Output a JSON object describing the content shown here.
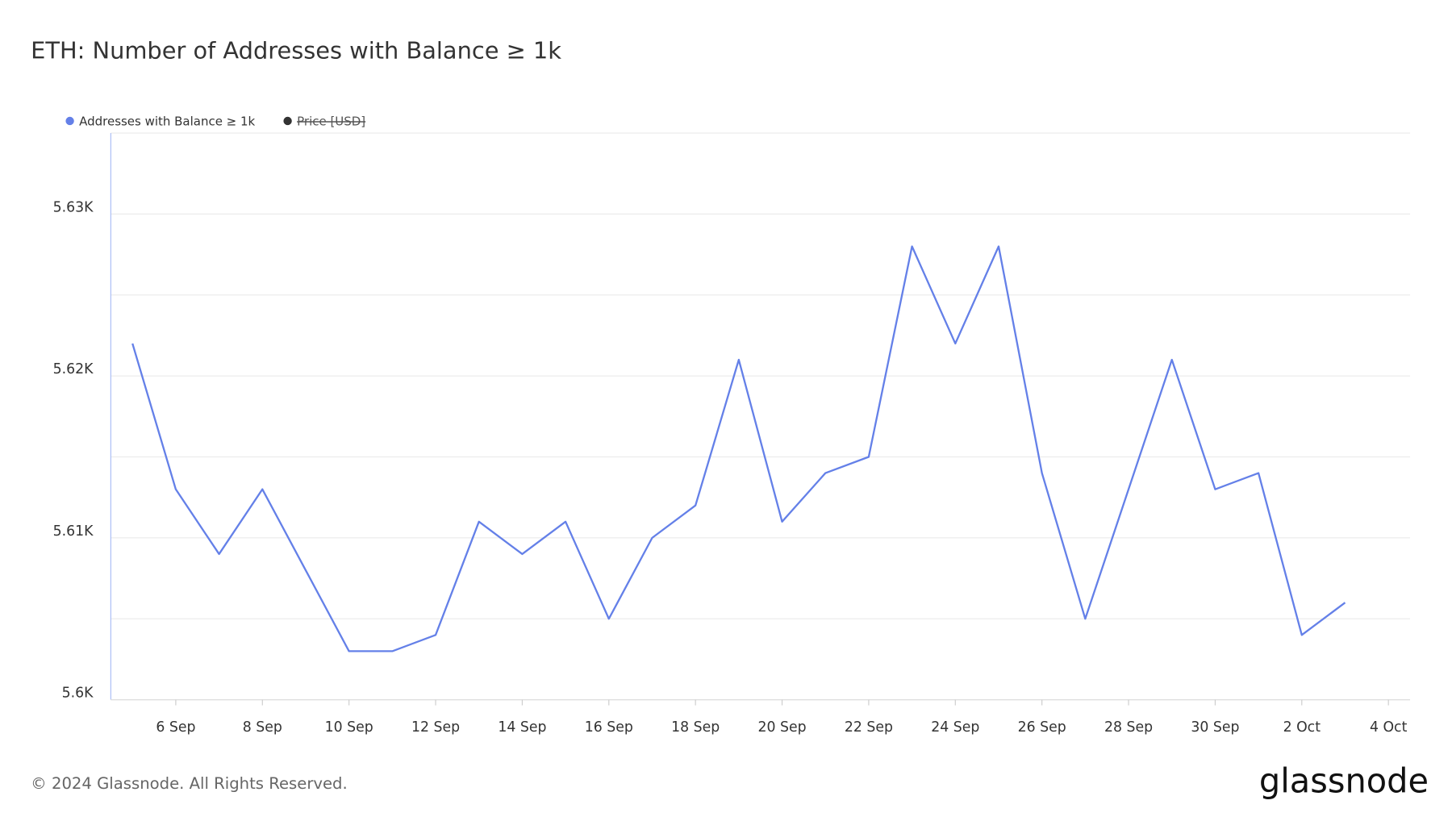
{
  "chart_data": {
    "type": "line",
    "title": "ETH: Number of Addresses with Balance ≥ 1k",
    "x": [
      "5 Sep",
      "6 Sep",
      "7 Sep",
      "8 Sep",
      "9 Sep",
      "10 Sep",
      "11 Sep",
      "12 Sep",
      "13 Sep",
      "14 Sep",
      "15 Sep",
      "16 Sep",
      "17 Sep",
      "18 Sep",
      "19 Sep",
      "20 Sep",
      "21 Sep",
      "22 Sep",
      "23 Sep",
      "24 Sep",
      "25 Sep",
      "26 Sep",
      "27 Sep",
      "28 Sep",
      "29 Sep",
      "30 Sep",
      "1 Oct",
      "2 Oct",
      "3 Oct"
    ],
    "series": [
      {
        "name": "Addresses with Balance ≥ 1k",
        "color": "#6480e8",
        "values": [
          5622,
          5613,
          5609,
          5613,
          5608,
          5603,
          5603,
          5604,
          5611,
          5609,
          5611,
          5605,
          5610,
          5612,
          5621,
          5611,
          5614,
          5615,
          5628,
          5622,
          5628,
          5614,
          5605,
          5613,
          5621,
          5613,
          5614,
          5604,
          5606
        ]
      },
      {
        "name": "Price [USD]",
        "color": "#333333",
        "visible": false
      }
    ],
    "xlim": [
      "5 Sep",
      "4 Oct"
    ],
    "xticks": [
      "6 Sep",
      "8 Sep",
      "10 Sep",
      "12 Sep",
      "14 Sep",
      "16 Sep",
      "18 Sep",
      "20 Sep",
      "22 Sep",
      "24 Sep",
      "26 Sep",
      "28 Sep",
      "30 Sep",
      "2 Oct",
      "4 Oct"
    ],
    "ylim": [
      5600,
      5635
    ],
    "yticks": [
      {
        "value": 5600,
        "label": "5.6K"
      },
      {
        "value": 5610,
        "label": "5.61K"
      },
      {
        "value": 5620,
        "label": "5.62K"
      },
      {
        "value": 5630,
        "label": "5.63K"
      }
    ],
    "yminor": [
      5605,
      5615,
      5625,
      5635
    ],
    "grid": true,
    "legend": "top-left"
  },
  "footer": {
    "copyright": "© 2024 Glassnode. All Rights Reserved.",
    "logo": "glassnode"
  }
}
